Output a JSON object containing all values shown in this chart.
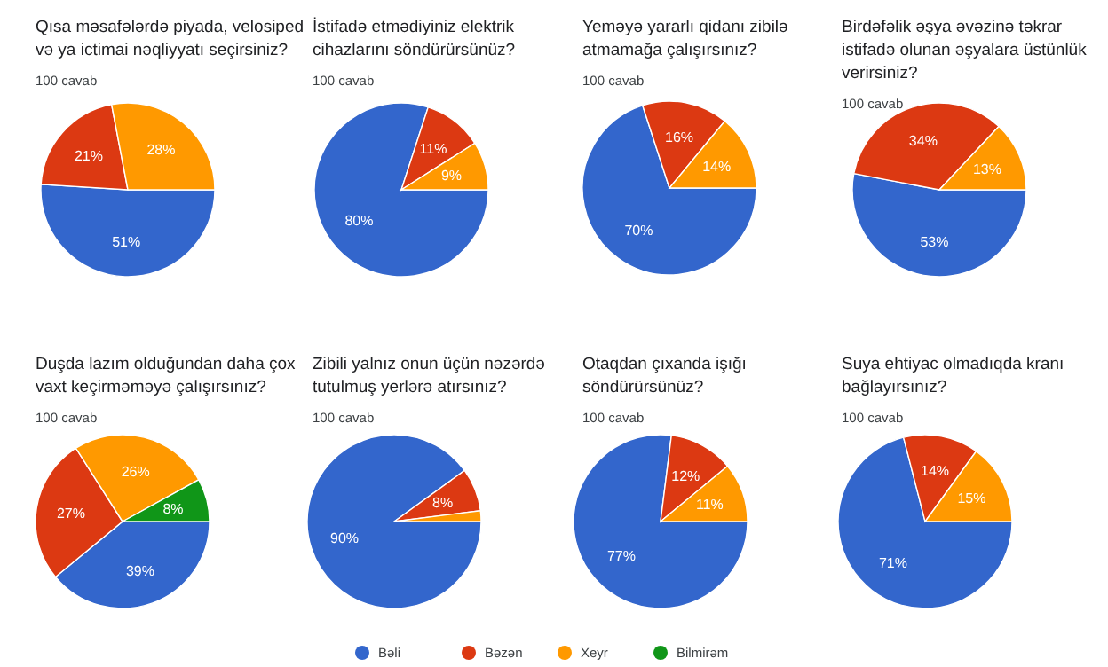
{
  "chart_data": [
    {
      "type": "pie",
      "title": "Qısa məsafələrdə piyada, velosiped və ya ictimai nəqliyyatı seçirsiniz?",
      "subtitle": "100 cavab",
      "categories": [
        null,
        null,
        null
      ],
      "values": [
        51,
        21,
        28
      ],
      "colors": [
        "#3366cc",
        "#dc3912",
        "#ff9900"
      ],
      "value_labels": [
        "51%",
        "21%",
        "28%"
      ]
    },
    {
      "type": "pie",
      "title": "İstifadə etmədiyiniz elektrik cihazlarını söndürürsünüz?",
      "subtitle": "100 cavab",
      "categories": [
        null,
        null,
        null
      ],
      "values": [
        80,
        11,
        9
      ],
      "colors": [
        "#3366cc",
        "#dc3912",
        "#ff9900"
      ],
      "value_labels": [
        "80%",
        "11%",
        "9%"
      ]
    },
    {
      "type": "pie",
      "title": "Yeməyə yararlı qidanı zibilə atmamağa çalışırsınız?",
      "subtitle": "100 cavab",
      "categories": [
        null,
        null,
        null
      ],
      "values": [
        70,
        16,
        14
      ],
      "colors": [
        "#3366cc",
        "#dc3912",
        "#ff9900"
      ],
      "value_labels": [
        "70%",
        "16%",
        "14%"
      ]
    },
    {
      "type": "pie",
      "title": "Birdəfəlik əşya əvəzinə təkrar istifadə olunan əşyalara üstünlük verirsiniz?",
      "subtitle": "100 cavab",
      "categories": [
        null,
        null,
        null
      ],
      "values": [
        53,
        34,
        13
      ],
      "colors": [
        "#3366cc",
        "#dc3912",
        "#ff9900"
      ],
      "value_labels": [
        "53%",
        "34%",
        "13%"
      ]
    },
    {
      "type": "pie",
      "title": "Duşda lazım olduğundan daha çox vaxt keçirməməyə çalışırsınız?",
      "subtitle": "100 cavab",
      "categories": [
        "Bəli",
        "Bəzən",
        "Xeyr",
        "Bilmirəm"
      ],
      "values": [
        39,
        27,
        26,
        8
      ],
      "colors": [
        "#3366cc",
        "#dc3912",
        "#ff9900",
        "#109618"
      ],
      "value_labels": [
        "39%",
        "27%",
        "26%",
        "8%"
      ],
      "legend": "bottom"
    },
    {
      "type": "pie",
      "title": "Zibili yalnız onun üçün nəzərdə tutulmuş yerlərə atırsınız?",
      "subtitle": "100 cavab",
      "categories": [
        null,
        null,
        null
      ],
      "values": [
        90,
        8,
        2
      ],
      "colors": [
        "#3366cc",
        "#dc3912",
        "#ff9900"
      ],
      "value_labels": [
        "90%",
        "8%",
        null
      ]
    },
    {
      "type": "pie",
      "title": "Otaqdan çıxanda işığı söndürürsünüz?",
      "subtitle": "100 cavab",
      "categories": [
        null,
        null,
        null
      ],
      "values": [
        77,
        12,
        11
      ],
      "colors": [
        "#3366cc",
        "#dc3912",
        "#ff9900"
      ],
      "value_labels": [
        "77%",
        "12%",
        "11%"
      ]
    },
    {
      "type": "pie",
      "title": "Suya ehtiyac olmadıqda kranı bağlayırsınız?",
      "subtitle": "100 cavab",
      "categories": [
        null,
        null,
        null
      ],
      "values": [
        71,
        14,
        15
      ],
      "colors": [
        "#3366cc",
        "#dc3912",
        "#ff9900"
      ],
      "value_labels": [
        "71%",
        "14%",
        "15%"
      ]
    }
  ]
}
